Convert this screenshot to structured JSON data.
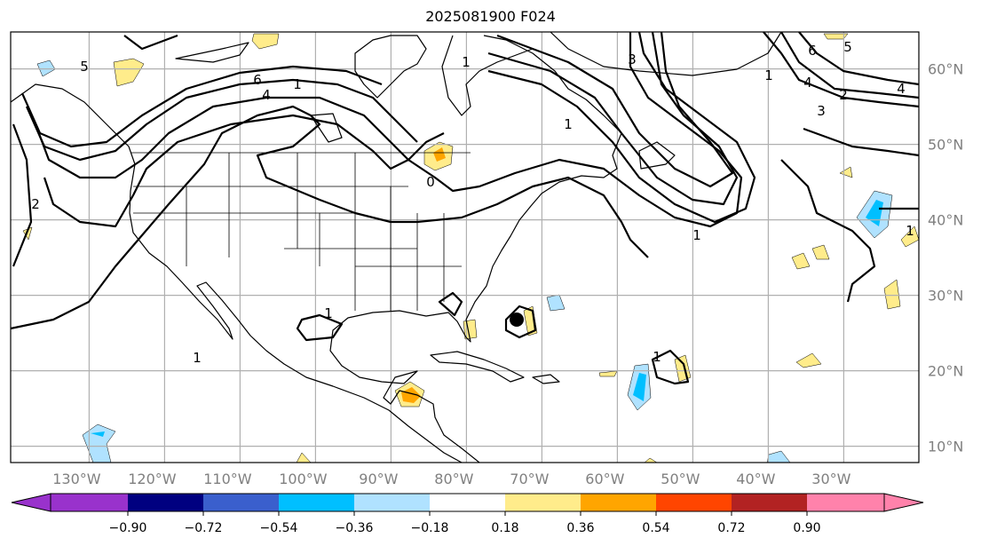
{
  "title": "2025081900 F024",
  "lon_labels": [
    "130°W",
    "120°W",
    "110°W",
    "100°W",
    "90°W",
    "80°W",
    "70°W",
    "60°W",
    "50°W",
    "40°W",
    "30°W"
  ],
  "lat_labels": [
    "60°N",
    "50°N",
    "40°N",
    "30°N",
    "20°N",
    "10°N"
  ],
  "contour_labels": [
    "5",
    "6",
    "4",
    "1",
    "2",
    "1",
    "1",
    "1",
    "1",
    "0",
    "3",
    "5",
    "6",
    "4",
    "4",
    "2",
    "3",
    "1",
    "1",
    "1",
    "1"
  ],
  "colorbar": {
    "ticks": [
      "−0.90",
      "−0.72",
      "−0.54",
      "−0.36",
      "−0.18",
      "0.18",
      "0.36",
      "0.54",
      "0.72",
      "0.90"
    ],
    "colors": [
      "#9932cc",
      "#000080",
      "#3a5fcd",
      "#00bfff",
      "#b0e2ff",
      "#ffffff",
      "#ffec8b",
      "#ffa500",
      "#ff4500",
      "#b22222",
      "#ff82ab"
    ]
  }
}
